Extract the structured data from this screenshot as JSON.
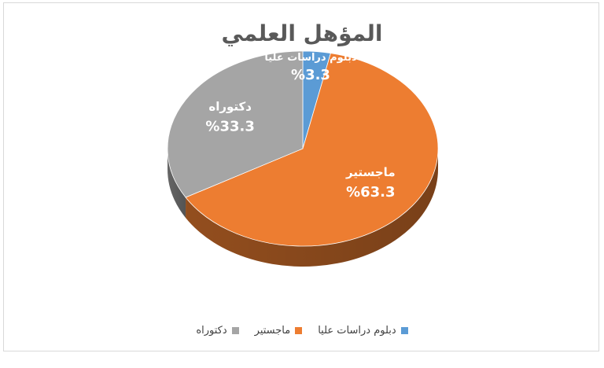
{
  "chart_data": {
    "type": "pie",
    "title": "المؤهل العلمي",
    "categories": [
      "دبلوم دراسات عليا",
      "ماجستير",
      "دكتوراه"
    ],
    "values": [
      3.3,
      63.3,
      33.3
    ],
    "value_labels": [
      "%3.3",
      "%63.3",
      "%33.3"
    ],
    "colors": [
      "#5b9bd5",
      "#ed7d31",
      "#a5a5a5"
    ],
    "legend_position": "bottom"
  }
}
